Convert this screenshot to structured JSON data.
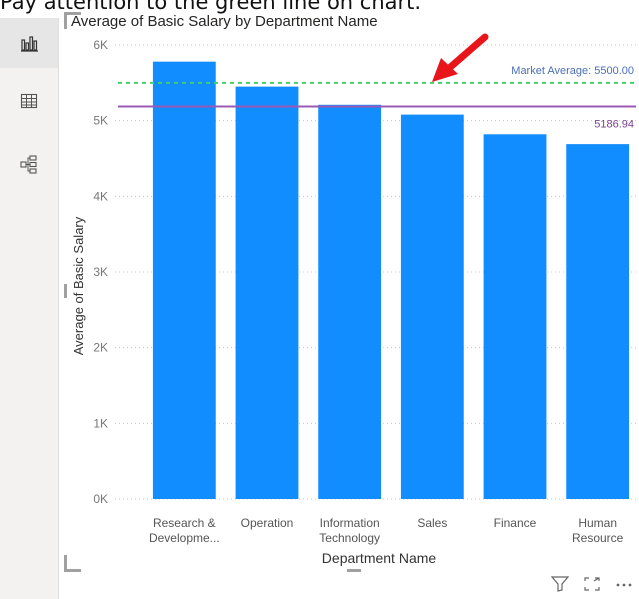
{
  "caption": "Pay attention to the green line on chart.",
  "sidebar": {
    "items": [
      {
        "icon": "bar-chart-icon",
        "active": true
      },
      {
        "icon": "table-icon",
        "active": false
      },
      {
        "icon": "tree-icon",
        "active": false
      }
    ]
  },
  "chart_data": {
    "type": "bar",
    "title": "Average of Basic Salary by Department Name",
    "xlabel": "Department Name",
    "ylabel": "Average of Basic Salary",
    "categories": [
      [
        "Research &",
        "Developme..."
      ],
      [
        "Operation"
      ],
      [
        "Information",
        "Technology"
      ],
      [
        "Sales"
      ],
      [
        "Finance"
      ],
      [
        "Human",
        "Resource"
      ]
    ],
    "values": [
      5780,
      5450,
      5210,
      5080,
      4820,
      4690
    ],
    "ylim": [
      0,
      6000
    ],
    "yticks": [
      {
        "value": 0,
        "label": "0K"
      },
      {
        "value": 1000,
        "label": "1K"
      },
      {
        "value": 2000,
        "label": "2K"
      },
      {
        "value": 3000,
        "label": "3K"
      },
      {
        "value": 4000,
        "label": "4K"
      },
      {
        "value": 5000,
        "label": "5K"
      },
      {
        "value": 6000,
        "label": "6K"
      }
    ],
    "grid": true,
    "bar_color": "#118dff",
    "reference_lines": [
      {
        "value": 5500,
        "label": "Market Average: 5500.00",
        "color": "#3fd16b",
        "style": "dashed",
        "label_color": "#4a6fb5"
      },
      {
        "value": 5186.94,
        "label": "5186.94",
        "color": "#9b59b6",
        "style": "solid",
        "label_color": "#7a3f8f"
      }
    ],
    "annotation_arrow_color": "#e8151b"
  },
  "footer": {
    "icons": [
      "filter-icon",
      "focus-mode-icon",
      "more-options-icon"
    ]
  }
}
